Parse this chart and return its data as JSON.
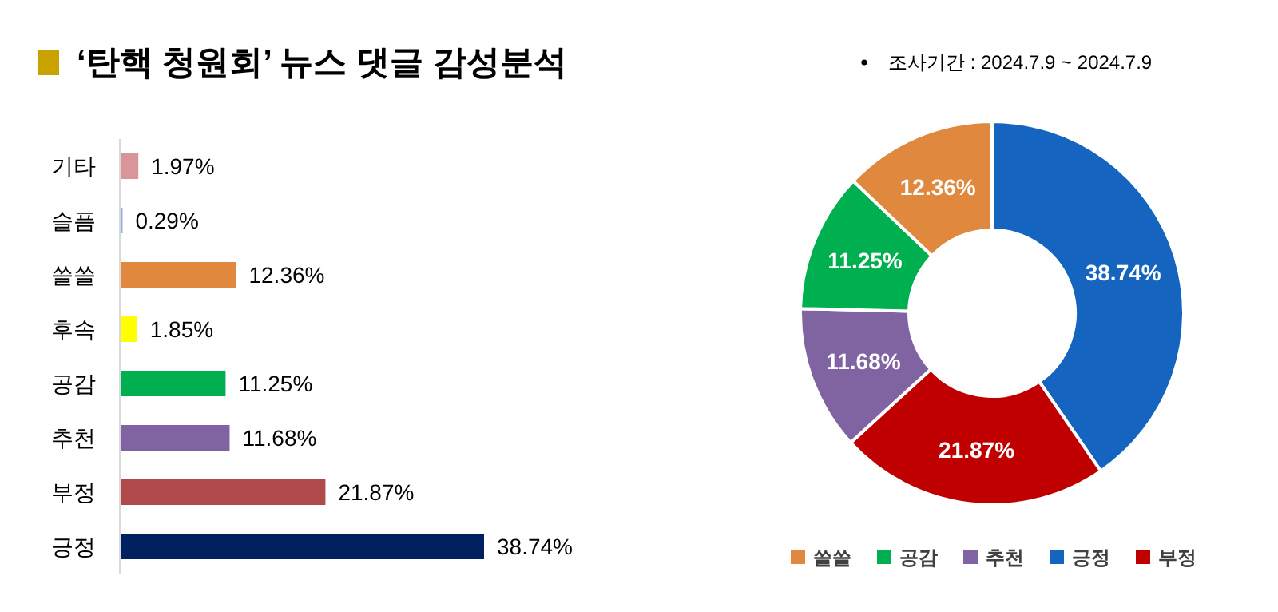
{
  "chart_data": [
    {
      "type": "bar",
      "orientation": "horizontal",
      "title": "‘탄핵 청원회’ 뉴스 댓글 감성분석",
      "categories": [
        "기타",
        "슬픔",
        "쓸쓸",
        "후속",
        "공감",
        "추천",
        "부정",
        "긍정"
      ],
      "values": [
        1.97,
        0.29,
        12.36,
        1.85,
        11.25,
        11.68,
        21.87,
        38.74
      ],
      "value_labels": [
        "1.97%",
        "0.29%",
        "12.36%",
        "1.85%",
        "11.25%",
        "11.68%",
        "21.87%",
        "38.74%"
      ],
      "colors": [
        "#d9959a",
        "#8faadc",
        "#e0883e",
        "#ffff00",
        "#00b050",
        "#8064a2",
        "#b04a4a",
        "#002060"
      ]
    },
    {
      "type": "donut",
      "subtitle": "조사기간 : 2024.7.9 ~ 2024.7.9",
      "categories": [
        "긍정",
        "부정",
        "추천",
        "공감",
        "쓸쓸"
      ],
      "values": [
        38.74,
        21.87,
        11.68,
        11.25,
        12.36
      ],
      "value_labels": [
        "38.74%",
        "21.87%",
        "11.68%",
        "11.25%",
        "12.36%"
      ],
      "colors": [
        "#1565c0",
        "#c00000",
        "#8064a2",
        "#00b050",
        "#e0883e"
      ],
      "legend": "bottom"
    }
  ]
}
